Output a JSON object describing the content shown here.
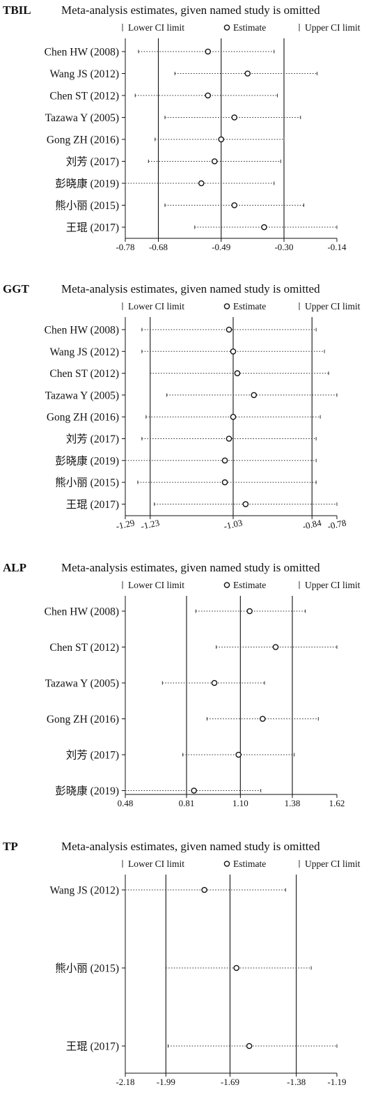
{
  "legend": {
    "lower": "Lower CI limit",
    "estimate": "Estimate",
    "upper": "Upper CI limit"
  },
  "chart_data": [
    {
      "type": "forest",
      "label": "TBIL",
      "title": "Meta-analysis estimates, given named study is omitted",
      "xlim": [
        -0.78,
        -0.14
      ],
      "xticks": [
        "-0.78",
        "-0.68",
        "-0.49",
        "-0.30",
        "-0.14"
      ],
      "reference_lines": [
        -0.68,
        -0.49,
        -0.3
      ],
      "studies": [
        {
          "name": "Chen HW (2008)",
          "lower": -0.74,
          "estimate": -0.53,
          "upper": -0.33
        },
        {
          "name": "Wang JS (2012)",
          "lower": -0.63,
          "estimate": -0.41,
          "upper": -0.2
        },
        {
          "name": "Chen ST (2012)",
          "lower": -0.75,
          "estimate": -0.53,
          "upper": -0.32
        },
        {
          "name": "Tazawa Y (2005)",
          "lower": -0.66,
          "estimate": -0.45,
          "upper": -0.25
        },
        {
          "name": "Gong ZH (2016)",
          "lower": -0.69,
          "estimate": -0.49,
          "upper": -0.3
        },
        {
          "name": "刘芳 (2017)",
          "lower": -0.71,
          "estimate": -0.51,
          "upper": -0.31
        },
        {
          "name": "彭晓康 (2019)",
          "lower": -0.78,
          "estimate": -0.55,
          "upper": -0.33
        },
        {
          "name": "熊小丽 (2015)",
          "lower": -0.66,
          "estimate": -0.45,
          "upper": -0.24
        },
        {
          "name": "王琨 (2017)",
          "lower": -0.57,
          "estimate": -0.36,
          "upper": -0.14
        }
      ]
    },
    {
      "type": "forest",
      "label": "GGT",
      "title": "Meta-analysis estimates, given named study is omitted",
      "xlim": [
        -1.29,
        -0.78
      ],
      "xticks": [
        "-1.29",
        "-1.23",
        "-1.03",
        "-0.84",
        "-0.78"
      ],
      "reference_lines": [
        -1.23,
        -1.03,
        -0.84
      ],
      "studies": [
        {
          "name": "Chen HW (2008)",
          "lower": -1.25,
          "estimate": -1.04,
          "upper": -0.83
        },
        {
          "name": "Wang JS (2012)",
          "lower": -1.25,
          "estimate": -1.03,
          "upper": -0.81
        },
        {
          "name": "Chen ST (2012)",
          "lower": -1.23,
          "estimate": -1.02,
          "upper": -0.8
        },
        {
          "name": "Tazawa Y (2005)",
          "lower": -1.19,
          "estimate": -0.98,
          "upper": -0.78
        },
        {
          "name": "Gong ZH (2016)",
          "lower": -1.24,
          "estimate": -1.03,
          "upper": -0.82
        },
        {
          "name": "刘芳 (2017)",
          "lower": -1.25,
          "estimate": -1.04,
          "upper": -0.83
        },
        {
          "name": "彭晓康 (2019)",
          "lower": -1.29,
          "estimate": -1.05,
          "upper": -0.83
        },
        {
          "name": "熊小丽 (2015)",
          "lower": -1.26,
          "estimate": -1.05,
          "upper": -0.83
        },
        {
          "name": "王琨 (2017)",
          "lower": -1.22,
          "estimate": -1.0,
          "upper": -0.78
        }
      ]
    },
    {
      "type": "forest",
      "label": "ALP",
      "title": "Meta-analysis estimates, given named study is omitted",
      "xlim": [
        0.48,
        1.62
      ],
      "xticks": [
        "0.48",
        "0.81",
        "1.10",
        "1.38",
        "1.62"
      ],
      "reference_lines": [
        0.81,
        1.1,
        1.38
      ],
      "studies": [
        {
          "name": "Chen HW (2008)",
          "lower": 0.86,
          "estimate": 1.15,
          "upper": 1.45
        },
        {
          "name": "Chen ST (2012)",
          "lower": 0.97,
          "estimate": 1.29,
          "upper": 1.62
        },
        {
          "name": "Tazawa Y (2005)",
          "lower": 0.68,
          "estimate": 0.96,
          "upper": 1.23
        },
        {
          "name": "Gong ZH (2016)",
          "lower": 0.92,
          "estimate": 1.22,
          "upper": 1.52
        },
        {
          "name": "刘芳 (2017)",
          "lower": 0.79,
          "estimate": 1.09,
          "upper": 1.39
        },
        {
          "name": "彭晓康 (2019)",
          "lower": 0.48,
          "estimate": 0.85,
          "upper": 1.21
        }
      ]
    },
    {
      "type": "forest",
      "label": "TP",
      "title": "Meta-analysis estimates, given named study is omitted",
      "xlim": [
        -2.18,
        -1.19
      ],
      "xticks": [
        "-2.18",
        "-1.99",
        "-1.69",
        "-1.38",
        "-1.19"
      ],
      "reference_lines": [
        -1.99,
        -1.69,
        -1.38
      ],
      "studies": [
        {
          "name": "Wang JS (2012)",
          "lower": -2.18,
          "estimate": -1.81,
          "upper": -1.43
        },
        {
          "name": "熊小丽 (2015)",
          "lower": -1.99,
          "estimate": -1.66,
          "upper": -1.31
        },
        {
          "name": "王琨 (2017)",
          "lower": -1.98,
          "estimate": -1.6,
          "upper": -1.19
        }
      ]
    }
  ]
}
